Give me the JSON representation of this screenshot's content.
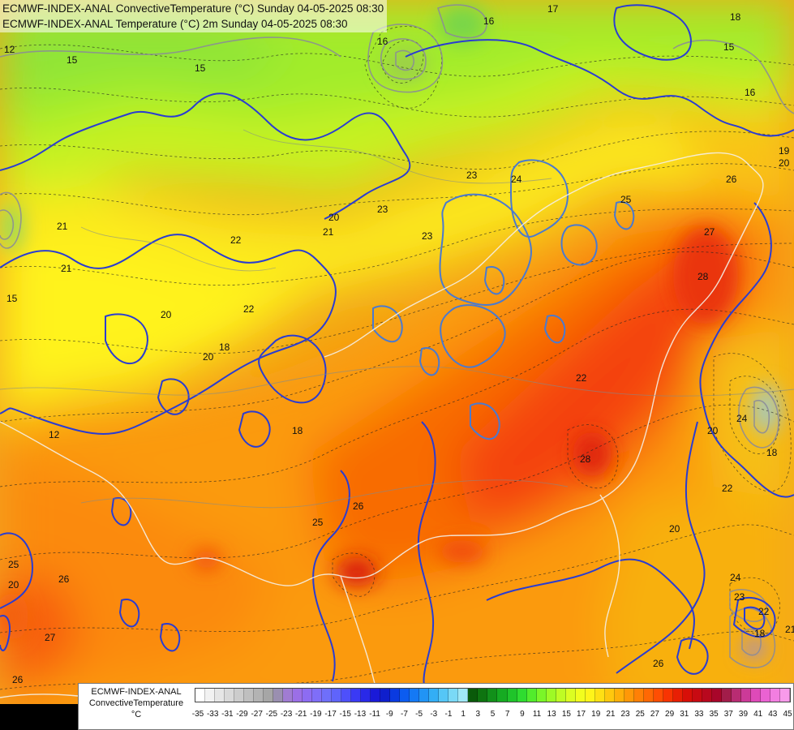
{
  "header": {
    "line1": "ECMWF-INDEX-ANAL ConvectiveTemperature (°C) Sunday 04-05-2025 08:30",
    "line2": "ECMWF-INDEX-ANAL Temperature (°C) 2m Sunday 04-05-2025 08:30"
  },
  "legend": {
    "model": "ECMWF-INDEX-ANAL",
    "parameter": "ConvectiveTemperature",
    "unit": "°C",
    "ticks": [
      "-35",
      "-33",
      "-31",
      "-29",
      "-27",
      "-25",
      "-23",
      "-21",
      "-19",
      "-17",
      "-15",
      "-13",
      "-11",
      "-9",
      "-7",
      "-5",
      "-3",
      "-1",
      "1",
      "3",
      "5",
      "7",
      "9",
      "11",
      "13",
      "15",
      "17",
      "19",
      "21",
      "23",
      "25",
      "27",
      "29",
      "31",
      "33",
      "35",
      "37",
      "39",
      "41",
      "43",
      "45"
    ],
    "colors": [
      "#ffffff",
      "#f2f2f2",
      "#e6e6e6",
      "#d9d9d9",
      "#cccccc",
      "#bfbfbf",
      "#b3b3b3",
      "#a6a6a6",
      "#9a8fb0",
      "#a07cd2",
      "#9b6fe6",
      "#8d6cf2",
      "#7f6ef8",
      "#6f6ffa",
      "#5f64fb",
      "#4e50fb",
      "#3a3af5",
      "#2929e8",
      "#1a1ad8",
      "#0f1fcc",
      "#0a3ae0",
      "#0c5cf0",
      "#1479f5",
      "#2194f5",
      "#33aef5",
      "#55c6f6",
      "#7ad9f6",
      "#a0e8f6",
      "#0a5a0a",
      "#0e7410",
      "#12901a",
      "#16ab22",
      "#1fc42a",
      "#2fdc30",
      "#52ec2c",
      "#7af628",
      "#9efa25",
      "#bffc24",
      "#dcfd22",
      "#f2fd1e",
      "#fff41a",
      "#ffe014",
      "#ffc80e",
      "#ffb00a",
      "#ff9808",
      "#ff8006",
      "#ff6804",
      "#ff4e03",
      "#f83402",
      "#e81f04",
      "#d80f08",
      "#c80a12",
      "#b8081e",
      "#a8062a",
      "#a21d4a",
      "#b82c72",
      "#cc3a98",
      "#de4ab8",
      "#ea62d2",
      "#f27ee0",
      "#f89aea"
    ]
  },
  "map": {
    "contour_labels": [
      {
        "t": "12"
      },
      {
        "t": "15"
      },
      {
        "t": "15"
      },
      {
        "t": "16"
      },
      {
        "t": "16"
      },
      {
        "t": "17"
      },
      {
        "t": "18"
      },
      {
        "t": "15"
      },
      {
        "t": "16"
      },
      {
        "t": "19"
      },
      {
        "t": "20"
      },
      {
        "t": "21"
      },
      {
        "t": "21"
      },
      {
        "t": "15"
      },
      {
        "t": "20"
      },
      {
        "t": "21"
      },
      {
        "t": "22"
      },
      {
        "t": "23"
      },
      {
        "t": "23"
      },
      {
        "t": "23"
      },
      {
        "t": "24"
      },
      {
        "t": "25"
      },
      {
        "t": "26"
      },
      {
        "t": "27"
      },
      {
        "t": "28"
      },
      {
        "t": "22"
      },
      {
        "t": "20"
      },
      {
        "t": "18"
      },
      {
        "t": "20"
      },
      {
        "t": "18"
      },
      {
        "t": "12"
      },
      {
        "t": "22"
      },
      {
        "t": "28"
      },
      {
        "t": "20"
      },
      {
        "t": "24"
      },
      {
        "t": "18"
      },
      {
        "t": "22"
      },
      {
        "t": "20"
      },
      {
        "t": "26"
      },
      {
        "t": "25"
      },
      {
        "t": "25"
      },
      {
        "t": "26"
      },
      {
        "t": "20"
      },
      {
        "t": "27"
      },
      {
        "t": "26"
      },
      {
        "t": "24"
      },
      {
        "t": "23"
      },
      {
        "t": "22"
      },
      {
        "t": "26"
      },
      {
        "t": "18"
      },
      {
        "t": "21"
      }
    ]
  }
}
